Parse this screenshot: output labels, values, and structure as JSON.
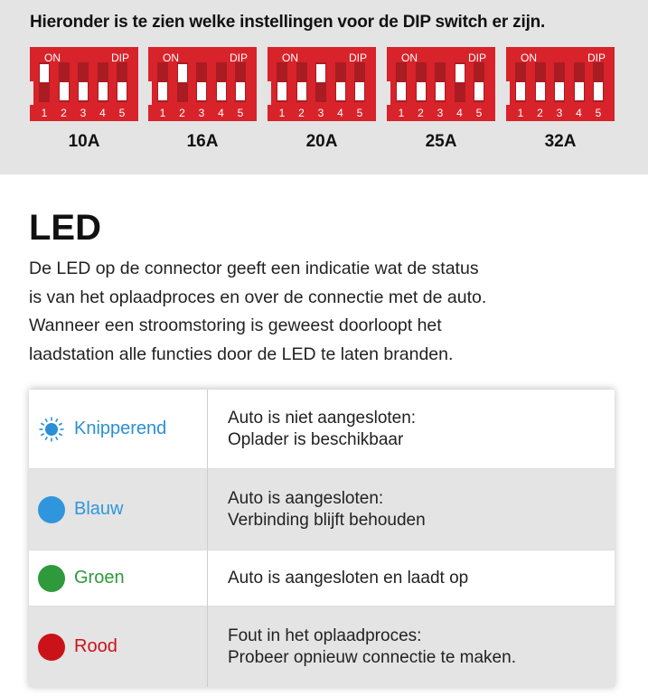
{
  "dip_section": {
    "title": "Hieronder is te zien welke instellingen voor de DIP switch er zijn.",
    "on_label": "ON",
    "dip_label": "DIP",
    "switch_numbers": [
      "1",
      "2",
      "3",
      "4",
      "5"
    ],
    "settings": [
      {
        "label": "10A",
        "switches_on": [
          1
        ]
      },
      {
        "label": "16A",
        "switches_on": [
          2
        ]
      },
      {
        "label": "20A",
        "switches_on": [
          3
        ]
      },
      {
        "label": "25A",
        "switches_on": [
          4
        ]
      },
      {
        "label": "32A",
        "switches_on": []
      }
    ]
  },
  "led": {
    "heading": "LED",
    "lines": [
      "De LED op de connector geeft een indicatie wat de status",
      "is van het oplaadproces en over de connectie met de auto.",
      "Wanneer een stroomstoring is geweest doorloopt het",
      "laadstation alle functies door de LED te laten branden."
    ],
    "rows": [
      {
        "icon": "blinking-sun-icon",
        "color": "#2a8fd4",
        "label": "Knipperend",
        "desc": [
          "Auto is niet aangesloten:",
          "Oplader is beschikbaar"
        ]
      },
      {
        "icon": "dot-icon",
        "color": "#2f96dd",
        "label": "Blauw",
        "desc": [
          "Auto is aangesloten:",
          "Verbinding blijft behouden"
        ]
      },
      {
        "icon": "dot-icon",
        "color": "#2e9a3c",
        "label": "Groen",
        "desc": [
          "Auto is aangesloten en laadt op"
        ]
      },
      {
        "icon": "dot-icon",
        "color": "#cc1219",
        "label": "Rood",
        "desc": [
          "Fout in het oplaadproces:",
          "Probeer opnieuw connectie te maken."
        ]
      }
    ]
  }
}
